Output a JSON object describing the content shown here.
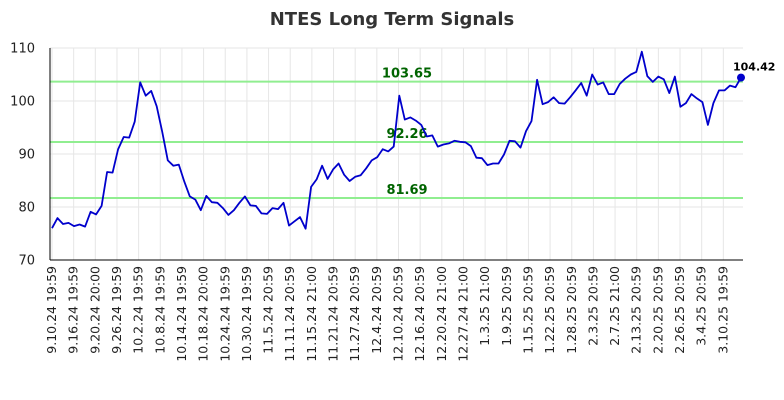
{
  "chart_data": {
    "type": "line",
    "title": "NTES Long Term Signals",
    "xlabel": "",
    "ylabel": "",
    "ylim": [
      70,
      110
    ],
    "yticks": [
      70,
      80,
      90,
      100,
      110
    ],
    "grid": true,
    "x_tick_labels": [
      "9.10.24 19:59",
      "9.16.24 19:59",
      "9.20.24 20:00",
      "9.26.24 19:59",
      "10.2.24 19:59",
      "10.8.24 19:59",
      "10.14.24 19:59",
      "10.18.24 20:00",
      "10.24.24 19:59",
      "10.30.24 19:59",
      "11.5.24 20:59",
      "11.11.24 20:59",
      "11.15.24 21:00",
      "11.21.24 20:59",
      "11.27.24 20:59",
      "12.4.24 20:59",
      "12.10.24 20:59",
      "12.16.24 20:59",
      "12.20.24 21:00",
      "12.27.24 21:00",
      "1.3.25 21:00",
      "1.9.25 20:59",
      "1.15.25 20:59",
      "1.22.25 20:59",
      "1.28.25 20:59",
      "2.3.25 20:59",
      "2.7.25 21:00",
      "2.13.25 20:59",
      "2.20.25 20:59",
      "2.26.25 20:59",
      "3.4.25 20:59",
      "3.10.25 19:59"
    ],
    "levels": [
      {
        "value": 103.65,
        "label": "103.65"
      },
      {
        "value": 92.26,
        "label": "92.26"
      },
      {
        "value": 81.69,
        "label": "81.69"
      }
    ],
    "last_point": {
      "value": 104.42,
      "label": "104.42",
      "color": "#0000cc"
    },
    "series": [
      {
        "color": "#0000cc",
        "values": [
          76,
          77.9,
          76.8,
          77,
          76.4,
          76.7,
          76.3,
          79.1,
          78.6,
          80.2,
          86.6,
          86.5,
          90.9,
          93.2,
          93.1,
          96.1,
          103.5,
          101,
          101.9,
          99,
          94.2,
          88.8,
          87.8,
          88,
          84.8,
          82,
          81.4,
          79.4,
          82.1,
          80.9,
          80.8,
          79.8,
          78.5,
          79.4,
          80.8,
          82,
          80.3,
          80.2,
          78.8,
          78.7,
          79.8,
          79.6,
          80.8,
          76.5,
          77.3,
          78.1,
          75.9,
          83.8,
          85.2,
          87.8,
          85.3,
          87.1,
          88.2,
          86.1,
          84.9,
          85.7,
          86,
          87.3,
          88.8,
          89.4,
          90.9,
          90.5,
          91.4,
          101,
          96.5,
          96.9,
          96.3,
          95.5,
          93.3,
          93.5,
          91.4,
          91.8,
          92,
          92.5,
          92.3,
          92.2,
          91.5,
          89.3,
          89.2,
          87.9,
          88.2,
          88.2,
          89.9,
          92.5,
          92.4,
          91.2,
          94.3,
          96.2,
          104,
          99.4,
          99.8,
          100.7,
          99.6,
          99.5,
          100.7,
          102,
          103.4,
          101,
          105,
          103.1,
          103.5,
          101.3,
          101.3,
          103.2,
          104.2,
          105,
          105.5,
          109.3,
          104.7,
          103.6,
          104.6,
          104.1,
          101.5,
          104.6,
          98.9,
          99.6,
          101.3,
          100.5,
          99.8,
          95.5,
          99.6,
          102,
          102,
          102.9,
          102.6,
          104.42
        ]
      }
    ]
  }
}
